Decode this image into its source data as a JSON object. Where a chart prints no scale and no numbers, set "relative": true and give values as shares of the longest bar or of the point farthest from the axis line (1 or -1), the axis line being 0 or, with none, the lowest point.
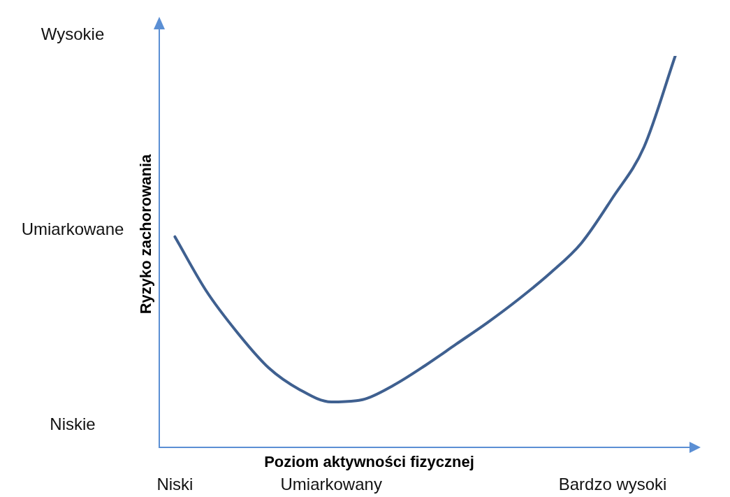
{
  "chart_data": {
    "type": "line",
    "relative": true,
    "xlabel": "Poziom aktywności fizycznej",
    "ylabel": "Ryzyko zachorowania",
    "categories": [
      "Niski",
      null,
      null,
      null,
      null,
      "Umiarkowany",
      null,
      null,
      null,
      null,
      null,
      null,
      null,
      null,
      "Bardzo wysoki",
      null,
      null
    ],
    "series": [
      {
        "color": "#3f6090",
        "values": [
          0.538,
          0.4,
          0.293,
          0.203,
          0.147,
          0.116,
          0.122,
          0.159,
          0.209,
          0.264,
          0.319,
          0.379,
          0.445,
          0.522,
          0.638,
          0.767,
          1
        ]
      }
    ],
    "annotations": [
      "Niskie",
      "Umiarkowane",
      "Wysokie"
    ],
    "grid": false,
    "legend": false,
    "marker": "none",
    "line_style": "solid"
  }
}
